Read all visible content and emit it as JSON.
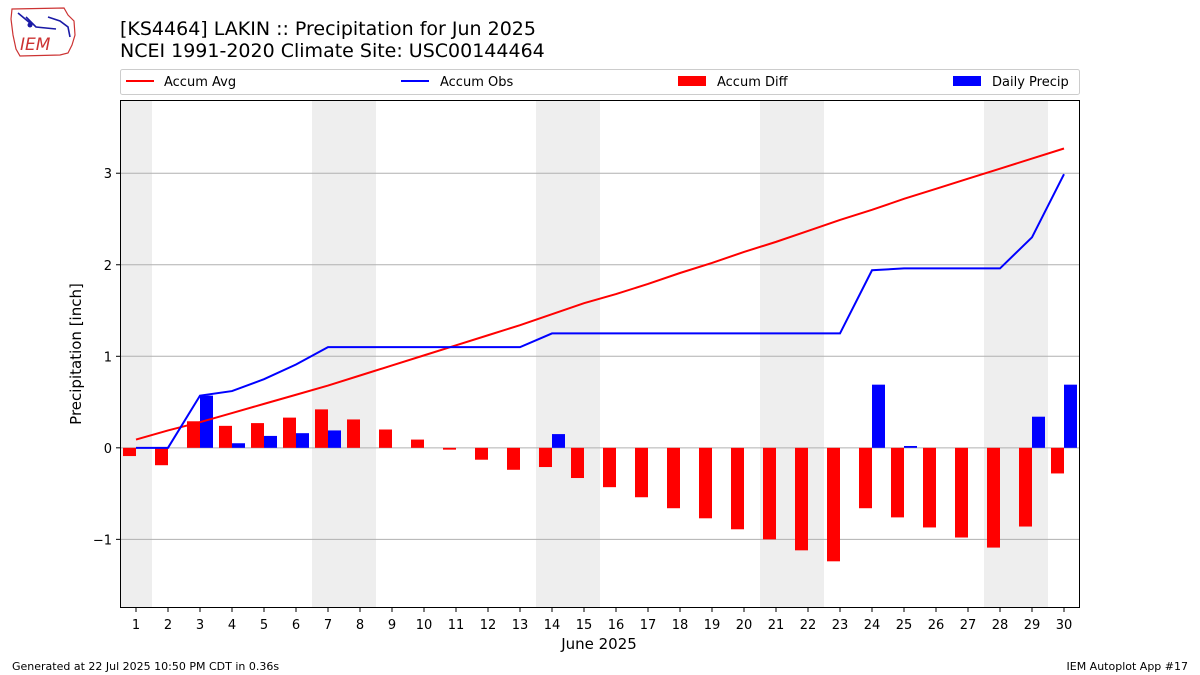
{
  "header": {
    "title_line1": "[KS4464] LAKIN :: Precipitation for Jun 2025",
    "title_line2": "NCEI 1991-2020 Climate Site: USC00144464",
    "logo_text": "IEM"
  },
  "footer": {
    "generated": "Generated at 22 Jul 2025 10:50 PM CDT in 0.36s",
    "app": "IEM Autoplot App #17"
  },
  "colors": {
    "accum_avg": "#ff0000",
    "accum_obs": "#0000ff",
    "accum_diff": "#ff0000",
    "daily_precip": "#0000ff",
    "weekend_shade": "#eeeeee",
    "grid": "#b0b0b0"
  },
  "chart_data": {
    "type": "bar",
    "xlabel": "June 2025",
    "ylabel": "Precipitation [inch]",
    "ylim": [
      -1.75,
      3.8
    ],
    "yticks": [
      -1,
      0,
      1,
      2,
      3
    ],
    "ytick_labels": [
      "−1",
      "0",
      "1",
      "2",
      "3"
    ],
    "grid": "horizontal",
    "legend_position": "top",
    "legend": [
      "Accum Avg",
      "Accum Obs",
      "Accum Diff",
      "Daily Precip"
    ],
    "x": [
      1,
      2,
      3,
      4,
      5,
      6,
      7,
      8,
      9,
      10,
      11,
      12,
      13,
      14,
      15,
      16,
      17,
      18,
      19,
      20,
      21,
      22,
      23,
      24,
      25,
      26,
      27,
      28,
      29,
      30
    ],
    "shaded_days": [
      [
        1,
        1
      ],
      [
        7,
        8
      ],
      [
        14,
        15
      ],
      [
        21,
        22
      ],
      [
        28,
        29
      ]
    ],
    "series": [
      {
        "name": "Accum Avg",
        "kind": "line",
        "values": [
          0.09,
          0.19,
          0.28,
          0.38,
          0.48,
          0.58,
          0.68,
          0.79,
          0.9,
          1.01,
          1.12,
          1.23,
          1.34,
          1.46,
          1.58,
          1.68,
          1.79,
          1.91,
          2.02,
          2.14,
          2.25,
          2.37,
          2.49,
          2.6,
          2.72,
          2.83,
          2.94,
          3.05,
          3.16,
          3.27
        ]
      },
      {
        "name": "Accum Obs",
        "kind": "line",
        "values": [
          0.0,
          0.0,
          0.57,
          0.62,
          0.75,
          0.91,
          1.1,
          1.1,
          1.1,
          1.1,
          1.1,
          1.1,
          1.1,
          1.25,
          1.25,
          1.25,
          1.25,
          1.25,
          1.25,
          1.25,
          1.25,
          1.25,
          1.25,
          1.94,
          1.96,
          1.96,
          1.96,
          1.96,
          2.3,
          2.99
        ]
      },
      {
        "name": "Accum Diff",
        "kind": "bar",
        "values": [
          -0.09,
          -0.19,
          0.29,
          0.24,
          0.27,
          0.33,
          0.42,
          0.31,
          0.2,
          0.09,
          -0.02,
          -0.13,
          -0.24,
          -0.21,
          -0.33,
          -0.43,
          -0.54,
          -0.66,
          -0.77,
          -0.89,
          -1.0,
          -1.12,
          -1.24,
          -0.66,
          -0.76,
          -0.87,
          -0.98,
          -1.09,
          -0.86,
          -0.28
        ]
      },
      {
        "name": "Daily Precip",
        "kind": "bar",
        "values": [
          0.0,
          0.0,
          0.57,
          0.05,
          0.13,
          0.16,
          0.19,
          0.0,
          0.0,
          0.0,
          0.0,
          0.0,
          0.0,
          0.15,
          0.0,
          0.0,
          0.0,
          0.0,
          0.0,
          0.0,
          0.0,
          0.0,
          0.0,
          0.69,
          0.02,
          0.0,
          0.0,
          0.0,
          0.34,
          0.69
        ]
      }
    ]
  }
}
